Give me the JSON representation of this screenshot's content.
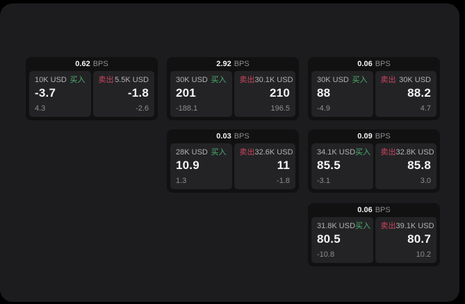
{
  "labels": {
    "bps_unit": "BPS",
    "buy_tag": "买入",
    "sell_tag": "卖出"
  },
  "colors": {
    "page_background": "#000000",
    "panel_background": "#1c1c1e",
    "card_background": "#111112",
    "tile_background": "#232325",
    "buy_green": "#4caf70",
    "sell_red": "#c9455e",
    "primary_text": "#f4f4f5",
    "muted_text": "#8e8e92"
  },
  "cards": [
    {
      "bps": "0.62",
      "buy": {
        "size": "10K USD",
        "price": "-3.7",
        "change": "4.3"
      },
      "sell": {
        "size": "5.5K USD",
        "price": "-1.8",
        "change": "-2.6"
      }
    },
    {
      "bps": "2.92",
      "buy": {
        "size": "30K USD",
        "price": "201",
        "change": "-188.1"
      },
      "sell": {
        "size": "30.1K USD",
        "price": "210",
        "change": "196.5"
      }
    },
    {
      "bps": "0.06",
      "buy": {
        "size": "30K USD",
        "price": "88",
        "change": "-4.9"
      },
      "sell": {
        "size": "30K USD",
        "price": "88.2",
        "change": "4.7"
      }
    },
    {
      "bps": "0.03",
      "buy": {
        "size": "28K USD",
        "price": "10.9",
        "change": "1.3"
      },
      "sell": {
        "size": "32.6K USD",
        "price": "11",
        "change": "-1.8"
      }
    },
    {
      "bps": "0.09",
      "buy": {
        "size": "34.1K USD",
        "price": "85.5",
        "change": "-3.1"
      },
      "sell": {
        "size": "32.8K USD",
        "price": "85.8",
        "change": "3.0"
      }
    },
    {
      "bps": "0.06",
      "buy": {
        "size": "31.8K USD",
        "price": "80.5",
        "change": "-10.8"
      },
      "sell": {
        "size": "39.1K USD",
        "price": "80.7",
        "change": "10.2"
      }
    }
  ]
}
